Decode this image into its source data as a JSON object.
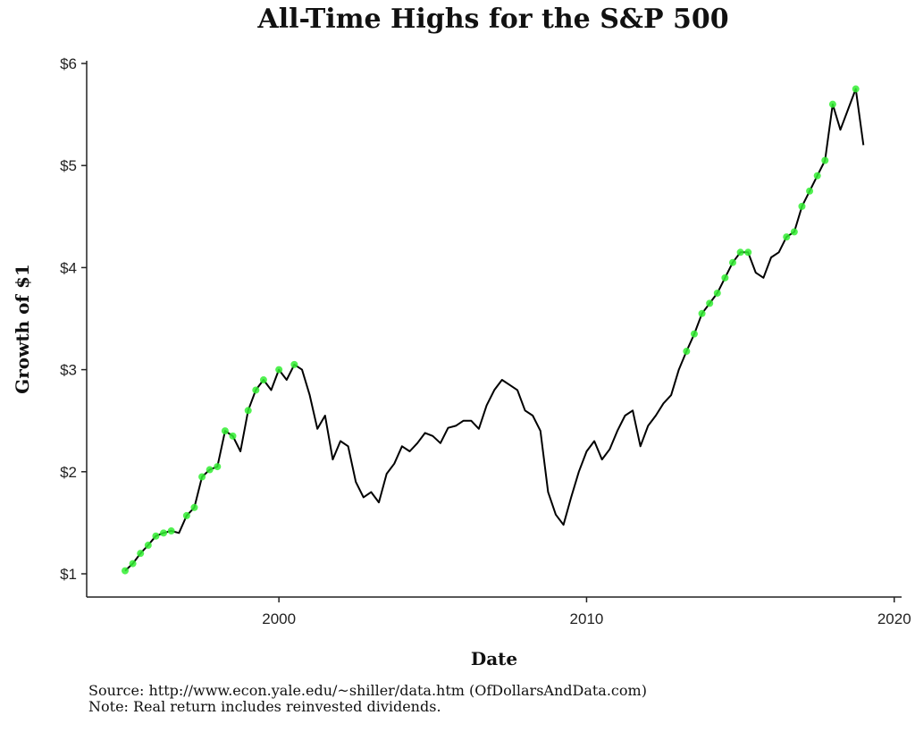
{
  "chart_data": {
    "type": "line",
    "title": "All-Time Highs for the S&P 500",
    "xlabel": "Date",
    "ylabel": "Growth of $1",
    "xlim": [
      1995.0,
      2020.0
    ],
    "ylim": [
      0.9,
      6.0
    ],
    "x_ticks": [
      {
        "value": 2000,
        "label": "2000"
      },
      {
        "value": 2010,
        "label": "2010"
      },
      {
        "value": 2020,
        "label": "2020"
      }
    ],
    "y_ticks": [
      {
        "value": 1,
        "label": "$1"
      },
      {
        "value": 2,
        "label": "$2"
      },
      {
        "value": 3,
        "label": "$3"
      },
      {
        "value": 4,
        "label": "$4"
      },
      {
        "value": 5,
        "label": "$5"
      },
      {
        "value": 6,
        "label": "$6"
      }
    ],
    "grid": false,
    "colors": {
      "line": "#000000",
      "highlight": "#33ee33"
    },
    "series": [
      {
        "x": [
          1995.0,
          1995.25,
          1995.5,
          1995.75,
          1996.0,
          1996.25,
          1996.5,
          1996.75,
          1997.0,
          1997.25,
          1997.5,
          1997.75,
          1998.0,
          1998.25,
          1998.5,
          1998.75,
          1999.0,
          1999.25,
          1999.5,
          1999.75,
          2000.0,
          2000.25,
          2000.5,
          2000.75,
          2001.0,
          2001.25,
          2001.5,
          2001.75,
          2002.0,
          2002.25,
          2002.5,
          2002.75,
          2003.0,
          2003.25,
          2003.5,
          2003.75,
          2004.0,
          2004.25,
          2004.5,
          2004.75,
          2005.0,
          2005.25,
          2005.5,
          2005.75,
          2006.0,
          2006.25,
          2006.5,
          2006.75,
          2007.0,
          2007.25,
          2007.5,
          2007.75,
          2008.0,
          2008.25,
          2008.5,
          2008.75,
          2009.0,
          2009.25,
          2009.5,
          2009.75,
          2010.0,
          2010.25,
          2010.5,
          2010.75,
          2011.0,
          2011.25,
          2011.5,
          2011.75,
          2012.0,
          2012.25,
          2012.5,
          2012.75,
          2013.0,
          2013.25,
          2013.5,
          2013.75,
          2014.0,
          2014.25,
          2014.5,
          2014.75,
          2015.0,
          2015.25,
          2015.5,
          2015.75,
          2016.0,
          2016.25,
          2016.5,
          2016.75,
          2017.0,
          2017.25,
          2017.5,
          2017.75,
          2018.0,
          2018.25,
          2018.5,
          2018.75,
          2019.0
        ],
        "y": [
          1.03,
          1.1,
          1.2,
          1.28,
          1.37,
          1.4,
          1.42,
          1.4,
          1.57,
          1.65,
          1.95,
          2.02,
          2.05,
          2.4,
          2.35,
          2.2,
          2.6,
          2.8,
          2.9,
          2.8,
          3.0,
          2.9,
          3.05,
          3.0,
          2.75,
          2.42,
          2.55,
          2.12,
          2.3,
          2.25,
          1.9,
          1.75,
          1.8,
          1.7,
          1.98,
          2.08,
          2.25,
          2.2,
          2.28,
          2.38,
          2.35,
          2.28,
          2.43,
          2.45,
          2.5,
          2.5,
          2.42,
          2.65,
          2.8,
          2.9,
          2.85,
          2.8,
          2.6,
          2.55,
          2.4,
          1.8,
          1.58,
          1.48,
          1.75,
          2.0,
          2.2,
          2.3,
          2.12,
          2.22,
          2.4,
          2.55,
          2.6,
          2.25,
          2.45,
          2.55,
          2.67,
          2.75,
          3.0,
          3.18,
          3.35,
          3.55,
          3.65,
          3.75,
          3.9,
          4.05,
          4.15,
          4.15,
          3.95,
          3.9,
          4.1,
          4.15,
          4.3,
          4.35,
          4.6,
          4.75,
          4.9,
          5.05,
          5.6,
          5.35,
          5.55,
          5.75,
          5.2
        ],
        "highlight_x": [
          1995.0,
          1995.25,
          1995.5,
          1995.75,
          1996.0,
          1996.25,
          1996.5,
          1997.0,
          1997.25,
          1997.5,
          1997.75,
          1998.0,
          1998.25,
          1998.5,
          1999.0,
          1999.25,
          1999.5,
          2000.0,
          2000.5,
          2013.25,
          2013.5,
          2013.75,
          2014.0,
          2014.25,
          2014.5,
          2014.75,
          2015.0,
          2015.25,
          2016.5,
          2016.75,
          2017.0,
          2017.25,
          2017.5,
          2017.75,
          2018.0,
          2018.75
        ],
        "highlight_y": [
          1.03,
          1.1,
          1.2,
          1.28,
          1.37,
          1.4,
          1.42,
          1.57,
          1.65,
          1.95,
          2.02,
          2.05,
          2.4,
          2.35,
          2.6,
          2.8,
          2.9,
          3.0,
          3.05,
          3.18,
          3.35,
          3.55,
          3.65,
          3.75,
          3.9,
          4.05,
          4.15,
          4.15,
          4.3,
          4.35,
          4.6,
          4.75,
          4.9,
          5.05,
          5.6,
          5.75
        ]
      }
    ],
    "source": "Source:  http://www.econ.yale.edu/~shiller/data.htm (OfDollarsAndData.com)",
    "note": "Note:  Real return includes reinvested dividends."
  }
}
